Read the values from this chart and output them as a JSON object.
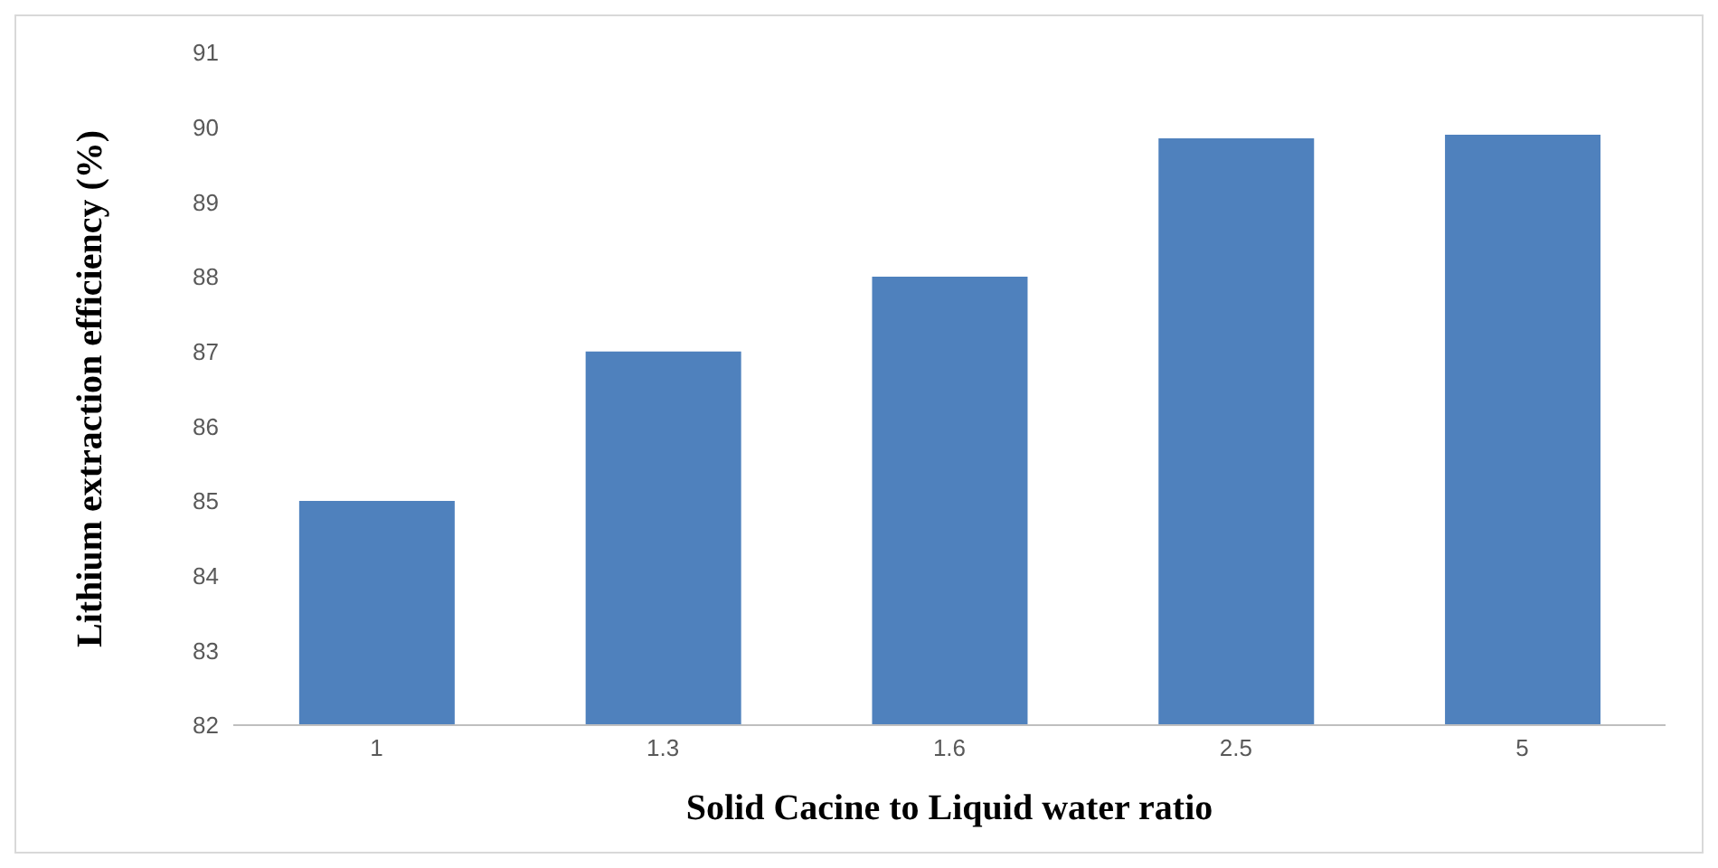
{
  "chart_data": {
    "type": "bar",
    "xlabel": "Solid Cacine to Liquid water ratio",
    "ylabel": "Lithium extraction efficiency (%)",
    "categories": [
      "1",
      "1.3",
      "1.6",
      "2.5",
      "5"
    ],
    "values": [
      85,
      87,
      88,
      89.85,
      89.9
    ],
    "color": "#4f81bd",
    "ylim": [
      82,
      91
    ],
    "yticks": [
      82,
      83,
      84,
      85,
      86,
      87,
      88,
      89,
      90,
      91
    ]
  }
}
